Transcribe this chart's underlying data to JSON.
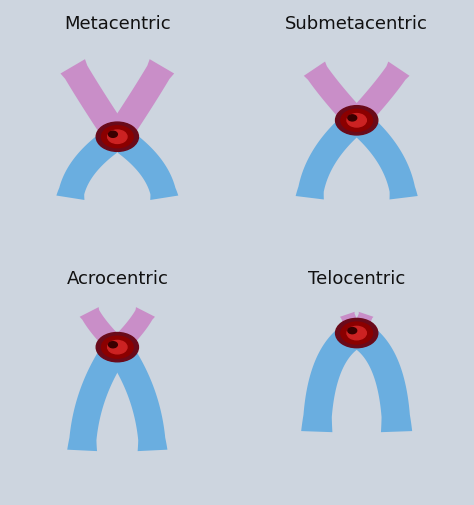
{
  "labels": [
    "Metacentric",
    "Submetacentric",
    "Acrocentric",
    "Telocentric"
  ],
  "bg_colors": [
    "#e8ecf2",
    "#dde3ec",
    "#dde3ec",
    "#e2e7ef"
  ],
  "arm_color_pink": "#c98ec8",
  "arm_color_blue": "#6aaee0",
  "arm_color_mid": "#9090c8",
  "centromere_dark": "#6a0a1a",
  "centromere_mid": "#8b0000",
  "centromere_bright": "#cc2222",
  "label_fontsize": 13,
  "fig_bg": "#cdd5df",
  "label_color": "#111111"
}
